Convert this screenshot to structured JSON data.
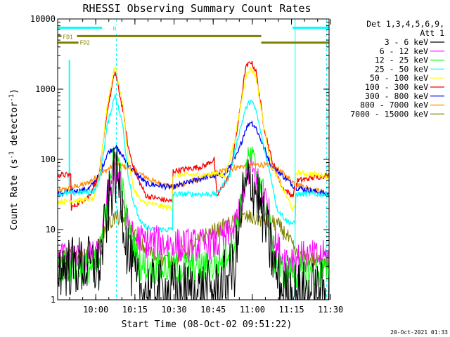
{
  "chart_data": {
    "type": "line",
    "title": "RHESSI Observing Summary Count Rates",
    "xlabel": "Start Time (08-Oct-02 09:51:22)",
    "ylabel_main": "Count Rate (s",
    "ylabel_sup1": "-1",
    "ylabel_mid": " detector",
    "ylabel_sup2": "-1",
    "ylabel_end": ")",
    "y_scale": "log",
    "xlim_min": [
      -6,
      98
    ],
    "ylim": [
      1,
      10000
    ],
    "x_ticks": [
      {
        "label": "10:00",
        "min": 8.6
      },
      {
        "label": "10:15",
        "min": 23.6
      },
      {
        "label": "10:30",
        "min": 38.6
      },
      {
        "label": "10:45",
        "min": 53.6
      },
      {
        "label": "11:00",
        "min": 68.6
      },
      {
        "label": "11:15",
        "min": 83.6
      },
      {
        "label": "11:30",
        "min": 98.6
      }
    ],
    "y_ticks": [
      {
        "label": "1",
        "v": 1
      },
      {
        "label": "10",
        "v": 10
      },
      {
        "label": "100",
        "v": 100
      },
      {
        "label": "1000",
        "v": 1000
      },
      {
        "label": "10000",
        "v": 10000
      }
    ],
    "legend_position": "right, outside plot",
    "legend_header": [
      "Det 1,3,4,5,6,9,",
      "Att 1"
    ],
    "series": [
      {
        "name": "3 - 6 keV",
        "color": "#000000",
        "points": [
          [
            -6,
            3
          ],
          [
            10,
            3
          ],
          [
            14,
            30
          ],
          [
            16,
            62
          ],
          [
            18,
            40
          ],
          [
            20,
            8
          ],
          [
            22,
            3
          ],
          [
            25,
            1.4
          ],
          [
            40,
            1.3
          ],
          [
            55,
            1.3
          ],
          [
            62,
            3
          ],
          [
            65,
            30
          ],
          [
            68,
            52
          ],
          [
            71,
            28
          ],
          [
            74,
            10
          ],
          [
            77,
            3
          ],
          [
            80,
            1.3
          ],
          [
            98,
            1.3
          ]
        ]
      },
      {
        "name": "6 - 12 keV",
        "color": "#ff00ff",
        "points": [
          [
            -6,
            4
          ],
          [
            10,
            4
          ],
          [
            14,
            45
          ],
          [
            16,
            75
          ],
          [
            18,
            55
          ],
          [
            20,
            15
          ],
          [
            22,
            8
          ],
          [
            26,
            7
          ],
          [
            40,
            6
          ],
          [
            55,
            6
          ],
          [
            62,
            10
          ],
          [
            66,
            50
          ],
          [
            68,
            75
          ],
          [
            71,
            45
          ],
          [
            74,
            25
          ],
          [
            77,
            7
          ],
          [
            80,
            4
          ],
          [
            98,
            4
          ]
        ]
      },
      {
        "name": "12 - 25 keV",
        "color": "#00ff00",
        "points": [
          [
            -6,
            3
          ],
          [
            10,
            3
          ],
          [
            14,
            60
          ],
          [
            16,
            110
          ],
          [
            18,
            75
          ],
          [
            20,
            15
          ],
          [
            22,
            7
          ],
          [
            26,
            3
          ],
          [
            40,
            2.8
          ],
          [
            55,
            3
          ],
          [
            62,
            7
          ],
          [
            66,
            70
          ],
          [
            68,
            110
          ],
          [
            71,
            60
          ],
          [
            74,
            20
          ],
          [
            77,
            4
          ],
          [
            80,
            2.5
          ],
          [
            98,
            2.5
          ]
        ]
      },
      {
        "name": "25 - 50 keV",
        "color": "#00ffff",
        "points": [
          [
            -6,
            32
          ],
          [
            8,
            35
          ],
          [
            10,
            50
          ],
          [
            13,
            300
          ],
          [
            16,
            850
          ],
          [
            19,
            300
          ],
          [
            21,
            60
          ],
          [
            23,
            25
          ],
          [
            26,
            12
          ],
          [
            30,
            10
          ],
          [
            38,
            10
          ],
          [
            38,
            32
          ],
          [
            55,
            32
          ],
          [
            60,
            60
          ],
          [
            63,
            200
          ],
          [
            66,
            520
          ],
          [
            68,
            700
          ],
          [
            70,
            500
          ],
          [
            73,
            150
          ],
          [
            76,
            50
          ],
          [
            78,
            20
          ],
          [
            82,
            13
          ],
          [
            85,
            12
          ],
          [
            85,
            32
          ],
          [
            98,
            32
          ]
        ]
      },
      {
        "name": "50 - 100 keV",
        "color": "#ffff00",
        "points": [
          [
            -6,
            25
          ],
          [
            8,
            27
          ],
          [
            10,
            60
          ],
          [
            13,
            600
          ],
          [
            16,
            2200
          ],
          [
            19,
            600
          ],
          [
            21,
            100
          ],
          [
            23,
            40
          ],
          [
            26,
            25
          ],
          [
            38,
            20
          ],
          [
            38,
            60
          ],
          [
            52,
            60
          ],
          [
            55,
            65
          ],
          [
            58,
            55
          ],
          [
            62,
            200
          ],
          [
            66,
            1500
          ],
          [
            68,
            2000
          ],
          [
            70,
            1500
          ],
          [
            73,
            300
          ],
          [
            76,
            80
          ],
          [
            80,
            40
          ],
          [
            84,
            20
          ],
          [
            85,
            20
          ],
          [
            85,
            65
          ],
          [
            98,
            58
          ]
        ]
      },
      {
        "name": "100 - 300 keV",
        "color": "#ff0000",
        "points": [
          [
            -6,
            60
          ],
          [
            -1,
            60
          ],
          [
            -1,
            20
          ],
          [
            6,
            30
          ],
          [
            10,
            60
          ],
          [
            13,
            500
          ],
          [
            16,
            1800
          ],
          [
            19,
            500
          ],
          [
            21,
            150
          ],
          [
            24,
            60
          ],
          [
            28,
            30
          ],
          [
            38,
            25
          ],
          [
            38,
            68
          ],
          [
            50,
            80
          ],
          [
            54,
            100
          ],
          [
            55,
            30
          ],
          [
            60,
            60
          ],
          [
            63,
            300
          ],
          [
            66,
            2000
          ],
          [
            68,
            2500
          ],
          [
            70,
            1800
          ],
          [
            73,
            300
          ],
          [
            76,
            100
          ],
          [
            80,
            40
          ],
          [
            84,
            30
          ],
          [
            86,
            50
          ],
          [
            98,
            60
          ]
        ]
      },
      {
        "name": "300 - 800 keV",
        "color": "#0000ff",
        "points": [
          [
            -6,
            32
          ],
          [
            6,
            38
          ],
          [
            10,
            60
          ],
          [
            13,
            120
          ],
          [
            16,
            155
          ],
          [
            19,
            110
          ],
          [
            22,
            75
          ],
          [
            28,
            45
          ],
          [
            38,
            40
          ],
          [
            50,
            55
          ],
          [
            58,
            60
          ],
          [
            63,
            120
          ],
          [
            66,
            270
          ],
          [
            68,
            350
          ],
          [
            70,
            280
          ],
          [
            73,
            150
          ],
          [
            76,
            80
          ],
          [
            80,
            60
          ],
          [
            85,
            40
          ],
          [
            98,
            32
          ]
        ]
      },
      {
        "name": "800 - 7000 keV",
        "color": "#ff8c00",
        "points": [
          [
            -6,
            35
          ],
          [
            5,
            45
          ],
          [
            10,
            60
          ],
          [
            16,
            85
          ],
          [
            22,
            75
          ],
          [
            30,
            50
          ],
          [
            38,
            40
          ],
          [
            50,
            55
          ],
          [
            58,
            70
          ],
          [
            65,
            80
          ],
          [
            72,
            85
          ],
          [
            78,
            75
          ],
          [
            85,
            45
          ],
          [
            98,
            32
          ]
        ]
      },
      {
        "name": "7000 - 15000 keV",
        "color": "#808000",
        "points": [
          [
            -6,
            4
          ],
          [
            8,
            4
          ],
          [
            12,
            10
          ],
          [
            16,
            15
          ],
          [
            20,
            14
          ],
          [
            26,
            6
          ],
          [
            32,
            4
          ],
          [
            38,
            3.5
          ],
          [
            50,
            8
          ],
          [
            60,
            12
          ],
          [
            66,
            15
          ],
          [
            72,
            14
          ],
          [
            78,
            12
          ],
          [
            82,
            8
          ],
          [
            86,
            4
          ],
          [
            98,
            3.5
          ]
        ]
      }
    ],
    "bars": [
      {
        "label": "N",
        "color": "#00ffff",
        "y": 7500,
        "ranges": [
          [
            -6,
            11
          ],
          [
            84,
            98
          ]
        ]
      },
      {
        "label": "FD1",
        "color": "#808000",
        "y": 5700,
        "ranges": [
          [
            -6,
            72
          ]
        ]
      },
      {
        "label": "FD2",
        "color": "#808000",
        "y": 4600,
        "ranges": [
          [
            -6,
            3.5
          ],
          [
            72,
            98
          ]
        ]
      }
    ],
    "vlines": [
      {
        "min": 16.5,
        "color": "#00ffff",
        "dashed": true
      },
      {
        "min": 85,
        "color": "#00ffff",
        "dashed": false
      },
      {
        "min": 97,
        "color": "#00ffff",
        "dashed": true
      }
    ],
    "left_spike": {
      "min": -1.5,
      "color": "#00ffff",
      "top": 2600
    }
  },
  "footer_date": "20-Oct-2021 01:33"
}
